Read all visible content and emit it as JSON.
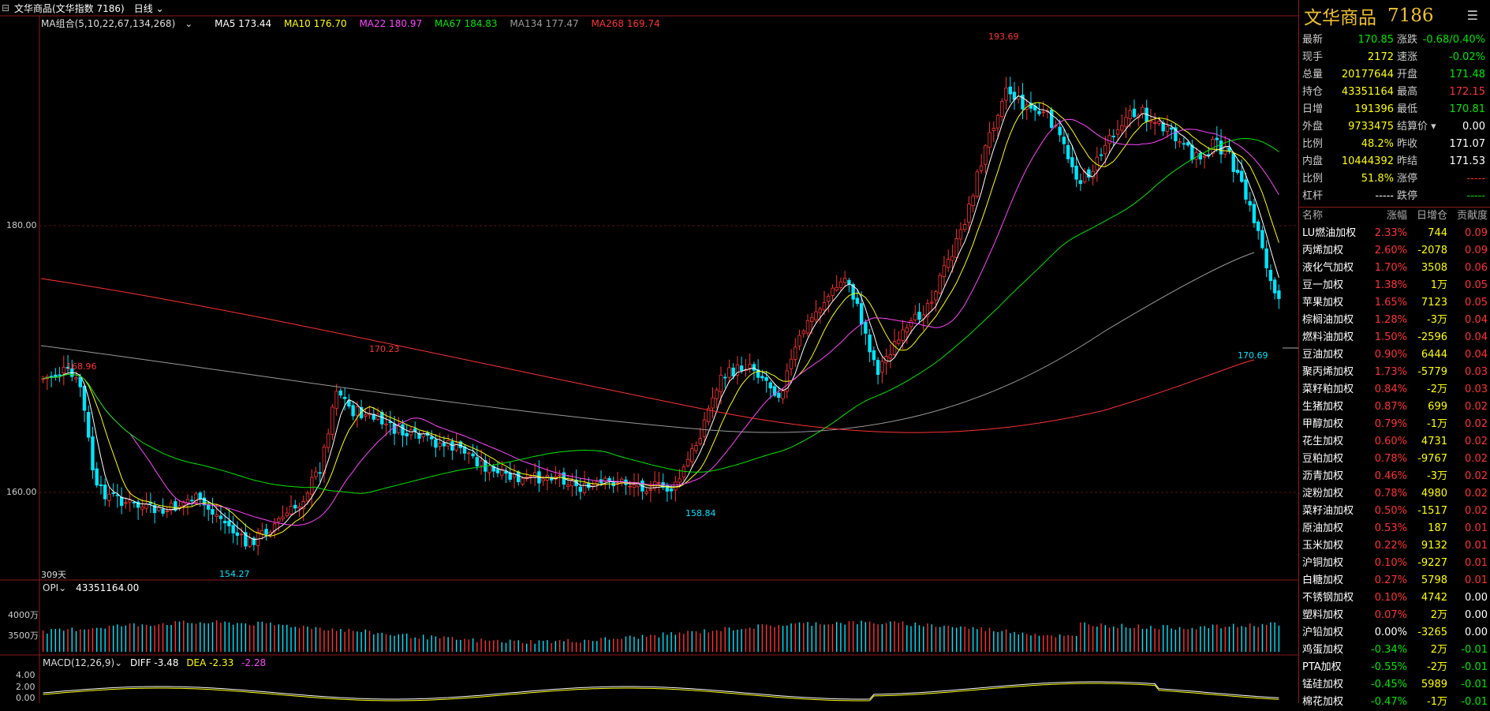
{
  "topbar": {
    "instrument": "文华商品(文华指数 7186)",
    "period": "日线"
  },
  "ma_legend": [
    {
      "label": "MA组合(5,10,22,67,134,268)",
      "color": "#dddddd"
    },
    {
      "label": "MA5 173.44",
      "color": "#ffffff"
    },
    {
      "label": "MA10 176.70",
      "color": "#ffff00"
    },
    {
      "label": "MA22 180.97",
      "color": "#ff44ff"
    },
    {
      "label": "MA67 184.83",
      "color": "#00e600"
    },
    {
      "label": "MA134 177.47",
      "color": "#999999"
    },
    {
      "label": "MA268 169.74",
      "color": "#ff3232"
    }
  ],
  "price_axis": {
    "top": "180.00",
    "bottom": "160.00"
  },
  "annotations": {
    "high": "193.69",
    "low": "154.27",
    "a1": "168.96",
    "a2": "170.23",
    "a3": "158.84",
    "last": "170.69",
    "days": "309天"
  },
  "opi": {
    "label": "OPI",
    "value": "43351164.00",
    "tick1": "4000万",
    "tick2": "3500万"
  },
  "macd": {
    "label": "MACD(12,26,9)",
    "diff": "DIFF -3.48",
    "dea": "DEA -2.33",
    "macd": "-2.28",
    "ticks": [
      "4.00",
      "2.00",
      "0.00"
    ]
  },
  "panel": {
    "name": "文华商品",
    "code": "7186",
    "quotes_left": [
      {
        "k": "最新",
        "v": "170.85",
        "c": "green"
      },
      {
        "k": "现手",
        "v": "2172",
        "c": "yellow"
      },
      {
        "k": "总量",
        "v": "20177644",
        "c": "yellow"
      },
      {
        "k": "持仓",
        "v": "43351164",
        "c": "yellow"
      },
      {
        "k": "日增",
        "v": "191396",
        "c": "yellow"
      },
      {
        "k": "外盘",
        "v": "9733475",
        "c": "yellow"
      },
      {
        "k": "比例",
        "v": "48.2%",
        "c": "yellow"
      },
      {
        "k": "内盘",
        "v": "10444392",
        "c": "yellow"
      },
      {
        "k": "比例",
        "v": "51.8%",
        "c": "yellow"
      },
      {
        "k": "杠杆",
        "v": "-----",
        "c": "white"
      }
    ],
    "quotes_right": [
      {
        "k": "涨跌",
        "v": "-0.68/0.40%",
        "c": "green"
      },
      {
        "k": "速涨",
        "v": "-0.02%",
        "c": "green"
      },
      {
        "k": "开盘",
        "v": "171.48",
        "c": "green"
      },
      {
        "k": "最高",
        "v": "172.15",
        "c": "red"
      },
      {
        "k": "最低",
        "v": "170.81",
        "c": "green"
      },
      {
        "k": "结算价",
        "v": "0.00",
        "c": "white"
      },
      {
        "k": "昨收",
        "v": "171.07",
        "c": "white"
      },
      {
        "k": "昨结",
        "v": "171.53",
        "c": "white"
      },
      {
        "k": "涨停",
        "v": "-----",
        "c": "red"
      },
      {
        "k": "跌停",
        "v": "-----",
        "c": "green"
      }
    ],
    "rank_headers": [
      "名称",
      "涨幅",
      "日增仓",
      "贡献度"
    ],
    "rank": [
      [
        "LU燃油加权",
        "2.33%",
        "744",
        "0.09"
      ],
      [
        "丙烯加权",
        "2.60%",
        "-2078",
        "0.09"
      ],
      [
        "液化气加权",
        "1.70%",
        "3508",
        "0.06"
      ],
      [
        "豆一加权",
        "1.38%",
        "1万",
        "0.05"
      ],
      [
        "苹果加权",
        "1.65%",
        "7123",
        "0.05"
      ],
      [
        "棕榈油加权",
        "1.28%",
        "-3万",
        "0.04"
      ],
      [
        "燃料油加权",
        "1.50%",
        "-2596",
        "0.04"
      ],
      [
        "豆油加权",
        "0.90%",
        "6444",
        "0.04"
      ],
      [
        "聚丙烯加权",
        "1.73%",
        "-5779",
        "0.03"
      ],
      [
        "菜籽粕加权",
        "0.84%",
        "-2万",
        "0.03"
      ],
      [
        "生猪加权",
        "0.87%",
        "699",
        "0.02"
      ],
      [
        "甲醇加权",
        "0.79%",
        "-1万",
        "0.02"
      ],
      [
        "花生加权",
        "0.60%",
        "4731",
        "0.02"
      ],
      [
        "豆粕加权",
        "0.78%",
        "-9767",
        "0.02"
      ],
      [
        "沥青加权",
        "0.46%",
        "-3万",
        "0.02"
      ],
      [
        "淀粉加权",
        "0.78%",
        "4980",
        "0.02"
      ],
      [
        "菜籽油加权",
        "0.50%",
        "-1517",
        "0.02"
      ],
      [
        "原油加权",
        "0.53%",
        "187",
        "0.01"
      ],
      [
        "玉米加权",
        "0.22%",
        "9132",
        "0.01"
      ],
      [
        "沪铜加权",
        "0.10%",
        "-9227",
        "0.01"
      ],
      [
        "白糖加权",
        "0.27%",
        "5798",
        "0.01"
      ],
      [
        "不锈钢加权",
        "0.10%",
        "4742",
        "0.00"
      ],
      [
        "塑料加权",
        "0.07%",
        "2万",
        "0.00"
      ],
      [
        "沪铅加权",
        "0.00%",
        "-3265",
        "0.00"
      ],
      [
        "鸡蛋加权",
        "-0.34%",
        "2万",
        "-0.01"
      ],
      [
        "PTA加权",
        "-0.55%",
        "-2万",
        "-0.01"
      ],
      [
        "锰硅加权",
        "-0.45%",
        "5989",
        "-0.01"
      ],
      [
        "棉花加权",
        "-0.47%",
        "-1万",
        "-0.01"
      ]
    ]
  }
}
